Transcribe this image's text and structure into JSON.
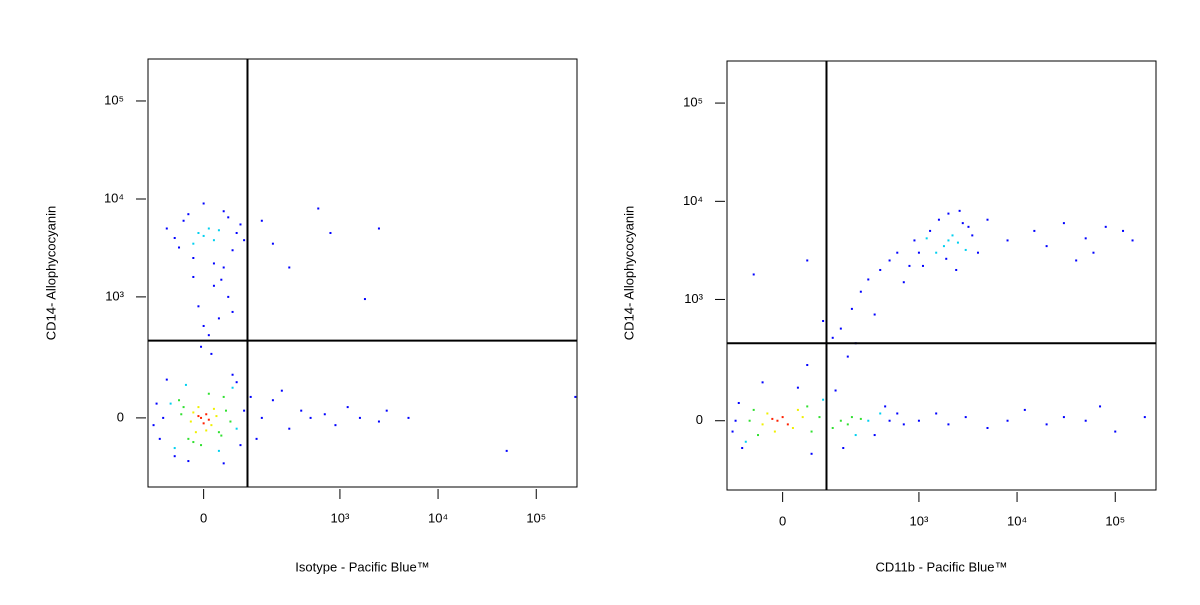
{
  "chart_data": [
    {
      "type": "scatter",
      "x_label": "Isotype - Pacific Blue™",
      "y_label": "CD14- Allophycocyanin",
      "xscale": "biexponential",
      "yscale": "biexponential",
      "xlim": [
        -140,
        260000
      ],
      "ylim": [
        -285,
        268000
      ],
      "xticks": [
        0,
        {
          "value": 1000,
          "label": "10³"
        },
        {
          "value": 10000,
          "label": "10⁴"
        },
        {
          "value": 100000,
          "label": "10⁵"
        }
      ],
      "yticks": [
        0,
        {
          "value": 1000,
          "label": "10³"
        },
        {
          "value": 10000,
          "label": "10⁴"
        },
        {
          "value": 100000,
          "label": "10⁵"
        }
      ],
      "gates": [
        100,
        350
      ],
      "series": [
        {
          "color": "#0000ff",
          "x": [
            -90,
            90,
            -100,
            80,
            -110,
            100,
            -80,
            60,
            -30,
            40,
            -120,
            110,
            70,
            -60,
            10,
            30,
            -10,
            50,
            20,
            -20,
            40,
            0,
            60,
            15,
            -5,
            35,
            -60,
            -40,
            60,
            80,
            -20,
            40,
            -50,
            70,
            0,
            20,
            -80,
            90,
            -30,
            50,
            150,
            200,
            300,
            400,
            500,
            700,
            900,
            1200,
            1600,
            2500,
            3000,
            5000,
            50000,
            250000,
            130,
            250,
            150,
            300,
            600,
            800,
            2500,
            1800,
            200
          ],
          "y": [
            0,
            20,
            -60,
            -80,
            40,
            -20,
            120,
            140,
            -140,
            -150,
            -20,
            60,
            110,
            -120,
            400,
            600,
            800,
            1000,
            1300,
            1600,
            2000,
            500,
            700,
            250,
            300,
            1500,
            4000,
            6000,
            3000,
            5500,
            2500,
            7500,
            3200,
            4500,
            9000,
            2200,
            5000,
            3800,
            7000,
            6500,
            0,
            50,
            -30,
            20,
            0,
            10,
            -20,
            30,
            0,
            -10,
            20,
            0,
            -100,
            60,
            -60,
            80,
            6000,
            2000,
            8000,
            4500,
            5000,
            950,
            3500
          ]
        },
        {
          "color": "#00d0f0",
          "x": [
            -60,
            60,
            -70,
            70,
            -35,
            30,
            0,
            -10,
            20,
            10,
            -20,
            30
          ],
          "y": [
            -90,
            90,
            40,
            -30,
            100,
            -100,
            4200,
            4500,
            3800,
            5000,
            3500,
            4800
          ]
        },
        {
          "color": "#30e030",
          "x": [
            -40,
            30,
            -30,
            45,
            -50,
            40,
            10,
            -20,
            55,
            -5,
            35,
            -45
          ],
          "y": [
            30,
            -40,
            -60,
            20,
            50,
            60,
            70,
            -70,
            -10,
            -80,
            -50,
            10
          ]
        },
        {
          "color": "#f0f000",
          "x": [
            -20,
            15,
            -10,
            25,
            -25,
            5,
            20,
            -15
          ],
          "y": [
            15,
            -20,
            30,
            5,
            -10,
            -35,
            25,
            -40
          ]
        },
        {
          "color": "#ff2000",
          "x": [
            -5,
            5,
            0,
            -10,
            10
          ],
          "y": [
            0,
            10,
            -15,
            5,
            -5
          ]
        }
      ]
    },
    {
      "type": "scatter",
      "x_label": "CD11b - Pacific Blue™",
      "y_label": "CD14- Allophycocyanin",
      "xscale": "biexponential",
      "yscale": "biexponential",
      "xlim": [
        -140,
        260000
      ],
      "ylim": [
        -285,
        268000
      ],
      "xticks": [
        0,
        {
          "value": 1000,
          "label": "10³"
        },
        {
          "value": 10000,
          "label": "10⁴"
        },
        {
          "value": 100000,
          "label": "10⁵"
        }
      ],
      "yticks": [
        0,
        {
          "value": 1000,
          "label": "10³"
        },
        {
          "value": 10000,
          "label": "10⁴"
        },
        {
          "value": 100000,
          "label": "10⁵"
        }
      ],
      "gates": [
        100,
        350
      ],
      "series": [
        {
          "color": "#0000ff",
          "x": [
            -110,
            -100,
            -90,
            -120,
            30,
            -40,
            60,
            500,
            600,
            700,
            350,
            450,
            130,
            160,
            100,
            150,
            200,
            250,
            300,
            400,
            120,
            180,
            500,
            600,
            800,
            350,
            90,
            50,
            700,
            220,
            1000,
            1300,
            1600,
            2000,
            2800,
            3500,
            4000,
            1100,
            2400,
            3200,
            900,
            1900,
            5000,
            2600,
            8000,
            15000,
            20000,
            30000,
            50000,
            60000,
            80000,
            120000,
            150000,
            40000,
            1000,
            1500,
            2000,
            3000,
            5000,
            8000,
            12000,
            20000,
            30000,
            50000,
            70000,
            100000,
            200000,
            -60,
            50
          ],
          "y": [
            0,
            50,
            -80,
            -30,
            100,
            120,
            -100,
            0,
            20,
            -10,
            -40,
            40,
            90,
            -80,
            300,
            500,
            800,
            1200,
            1600,
            2000,
            400,
            250,
            2500,
            3000,
            2200,
            700,
            600,
            200,
            1500,
            350,
            3000,
            5000,
            6500,
            7500,
            6000,
            4500,
            3000,
            2200,
            2000,
            5500,
            4000,
            2600,
            6500,
            8000,
            4000,
            5000,
            3500,
            6000,
            4200,
            3000,
            5500,
            5000,
            4000,
            2500,
            0,
            20,
            -10,
            10,
            -20,
            0,
            30,
            -10,
            10,
            0,
            40,
            -30,
            10,
            1800,
            2500
          ]
        },
        {
          "color": "#00d0f0",
          "x": [
            -80,
            90,
            300,
            400,
            2000,
            1800,
            2200,
            1500,
            2500,
            1200,
            3000,
            220
          ],
          "y": [
            -60,
            60,
            0,
            20,
            4000,
            3500,
            4500,
            3000,
            3800,
            4200,
            3200,
            -40
          ]
        },
        {
          "color": "#30e030",
          "x": [
            -60,
            60,
            80,
            -50,
            100,
            120,
            150,
            200,
            -70,
            50,
            180,
            250
          ],
          "y": [
            30,
            -30,
            10,
            -40,
            20,
            -20,
            0,
            10,
            0,
            40,
            -10,
            5
          ]
        },
        {
          "color": "#f0f000",
          "x": [
            -30,
            20,
            40,
            -40,
            30,
            -15
          ],
          "y": [
            20,
            -20,
            10,
            -10,
            30,
            -30
          ]
        },
        {
          "color": "#ff2000",
          "x": [
            -10,
            0,
            10,
            -20
          ],
          "y": [
            0,
            10,
            -10,
            5
          ]
        }
      ]
    }
  ]
}
